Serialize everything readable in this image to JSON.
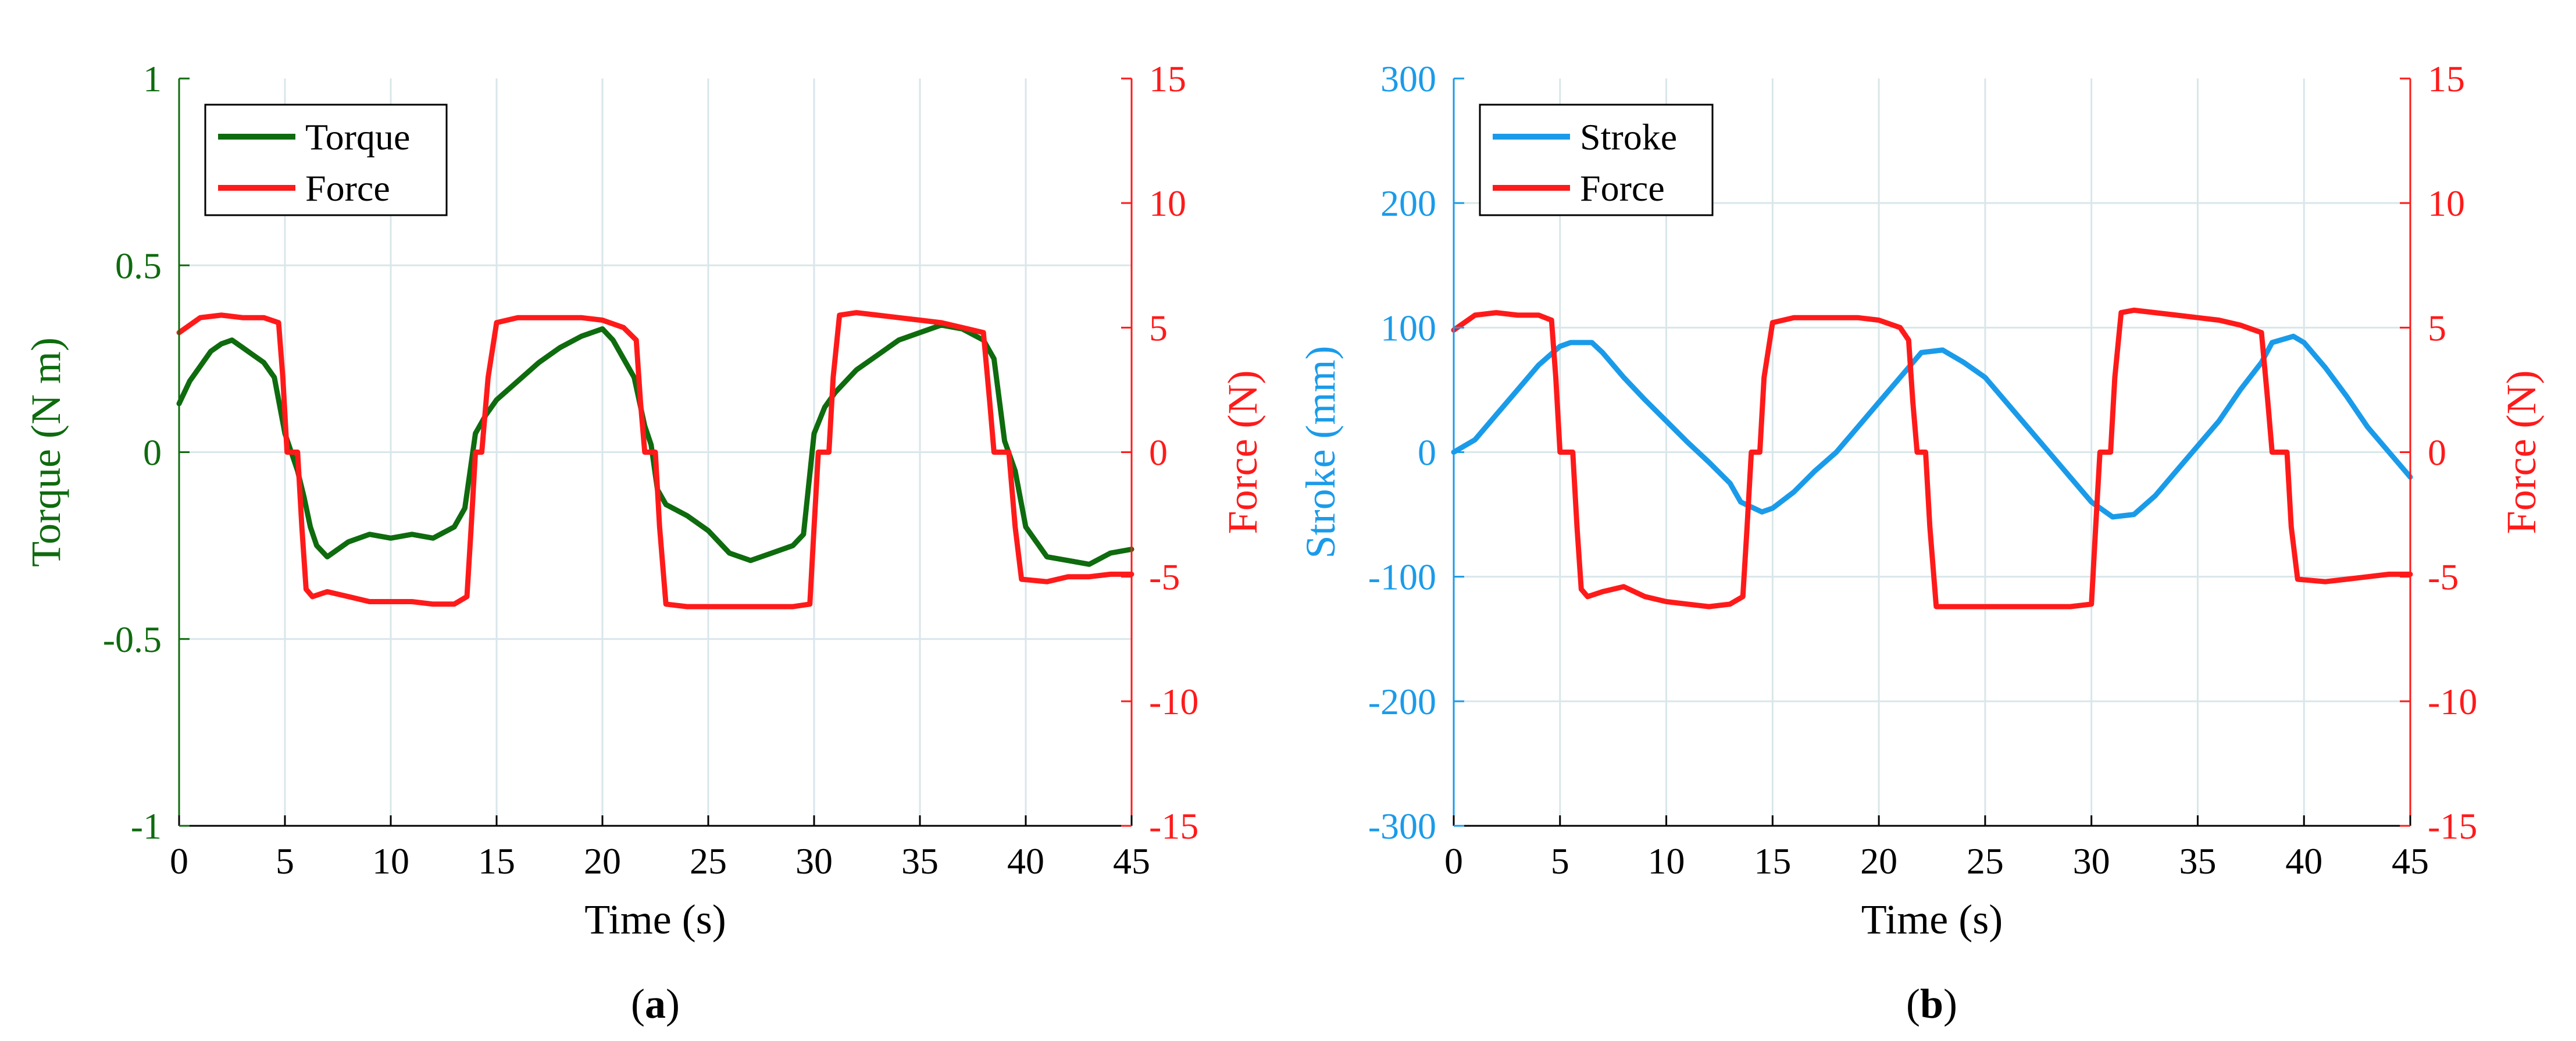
{
  "figure": {
    "captions": [
      "(a)",
      "(b)"
    ],
    "caption_letters": [
      "a",
      "b"
    ]
  },
  "colors": {
    "torque": "#0e6b0e",
    "force": "#ff1a1a",
    "stroke": "#1a9bea",
    "grid": "#d9e6ea",
    "axis": "#000000"
  },
  "chart_data": [
    {
      "type": "line",
      "panel": "a",
      "xlabel": "Time (s)",
      "ylabel_left": "Torque (N m)",
      "ylabel_right": "Force (N)",
      "xlim": [
        0,
        45
      ],
      "ylim_left": [
        -1,
        1
      ],
      "ylim_right": [
        -15,
        15
      ],
      "x_ticks": [
        0,
        5,
        10,
        15,
        20,
        25,
        30,
        35,
        40,
        45
      ],
      "y_left_ticks": [
        -1,
        -0.5,
        0,
        0.5,
        1
      ],
      "y_left_tick_labels": [
        "-1",
        "-0.5",
        "0",
        "0.5",
        "1"
      ],
      "y_right_ticks": [
        -15,
        -10,
        -5,
        0,
        5,
        10,
        15
      ],
      "grid": true,
      "legend_position": "top-left",
      "series": [
        {
          "name": "Torque",
          "axis": "left",
          "color": "#0e6b0e",
          "x": [
            0,
            0.5,
            1,
            1.5,
            2,
            2.5,
            3,
            3.5,
            4,
            4.5,
            5,
            5.3,
            5.6,
            5.9,
            6.2,
            6.5,
            7,
            8,
            9,
            10,
            11,
            12,
            13,
            13.5,
            14,
            14.5,
            15,
            16,
            17,
            18,
            19,
            20,
            20.5,
            21,
            21.5,
            22,
            22.3,
            22.6,
            23,
            24,
            25,
            26,
            27,
            28,
            29,
            29.5,
            30,
            30.5,
            31,
            32,
            33,
            34,
            35,
            36,
            37,
            38,
            38.5,
            39,
            39.5,
            40,
            41,
            42,
            43,
            44,
            45
          ],
          "values": [
            0.13,
            0.19,
            0.23,
            0.27,
            0.29,
            0.3,
            0.28,
            0.26,
            0.24,
            0.2,
            0.05,
            0.0,
            -0.05,
            -0.12,
            -0.2,
            -0.25,
            -0.28,
            -0.24,
            -0.22,
            -0.23,
            -0.22,
            -0.23,
            -0.2,
            -0.15,
            0.05,
            0.1,
            0.14,
            0.19,
            0.24,
            0.28,
            0.31,
            0.33,
            0.3,
            0.25,
            0.2,
            0.07,
            0.02,
            -0.1,
            -0.14,
            -0.17,
            -0.21,
            -0.27,
            -0.29,
            -0.27,
            -0.25,
            -0.22,
            0.05,
            0.12,
            0.16,
            0.22,
            0.26,
            0.3,
            0.32,
            0.34,
            0.33,
            0.3,
            0.25,
            0.03,
            -0.05,
            -0.2,
            -0.28,
            -0.29,
            -0.3,
            -0.27,
            -0.26
          ]
        },
        {
          "name": "Force",
          "axis": "right",
          "color": "#ff1a1a",
          "x": [
            0,
            1,
            2,
            3,
            4,
            4.7,
            4.9,
            5.1,
            5.6,
            5.8,
            6.0,
            6.3,
            7,
            8,
            9,
            10,
            11,
            12,
            13,
            13.6,
            13.8,
            14.0,
            14.3,
            14.6,
            15,
            16,
            17,
            18,
            19,
            20,
            21,
            21.6,
            21.8,
            22.0,
            22.5,
            22.7,
            23,
            24,
            25,
            26,
            27,
            28,
            29,
            29.8,
            30.0,
            30.2,
            30.7,
            30.9,
            31.2,
            32,
            33,
            34,
            35,
            36,
            37,
            38,
            38.3,
            38.5,
            39.2,
            39.5,
            39.8,
            41,
            42,
            43,
            44,
            45
          ],
          "values": [
            4.8,
            5.4,
            5.5,
            5.4,
            5.4,
            5.2,
            3.0,
            0,
            0,
            -3.0,
            -5.5,
            -5.8,
            -5.6,
            -5.8,
            -6.0,
            -6.0,
            -6.0,
            -6.1,
            -6.1,
            -5.8,
            -3.0,
            0,
            0,
            3.0,
            5.2,
            5.4,
            5.4,
            5.4,
            5.4,
            5.3,
            5.0,
            4.5,
            2.0,
            0,
            0,
            -3.0,
            -6.1,
            -6.2,
            -6.2,
            -6.2,
            -6.2,
            -6.2,
            -6.2,
            -6.1,
            -3.0,
            0,
            0,
            3.0,
            5.5,
            5.6,
            5.5,
            5.4,
            5.3,
            5.2,
            5.0,
            4.8,
            2.0,
            0,
            0,
            -3.0,
            -5.1,
            -5.2,
            -5.0,
            -5.0,
            -4.9,
            -4.9
          ]
        }
      ]
    },
    {
      "type": "line",
      "panel": "b",
      "xlabel": "Time (s)",
      "ylabel_left": "Stroke (mm)",
      "ylabel_right": "Force (N)",
      "xlim": [
        0,
        45
      ],
      "ylim_left": [
        -300,
        300
      ],
      "ylim_right": [
        -15,
        15
      ],
      "x_ticks": [
        0,
        5,
        10,
        15,
        20,
        25,
        30,
        35,
        40,
        45
      ],
      "y_left_ticks": [
        -300,
        -200,
        -100,
        0,
        100,
        200,
        300
      ],
      "y_left_tick_labels": [
        "-300",
        "-200",
        "-100",
        "0",
        "100",
        "200",
        "300"
      ],
      "y_right_ticks": [
        -15,
        -10,
        -5,
        0,
        5,
        10,
        15
      ],
      "grid": true,
      "legend_position": "top-left",
      "series": [
        {
          "name": "Stroke",
          "axis": "left",
          "color": "#1a9bea",
          "x": [
            0,
            1,
            2,
            3,
            4,
            5,
            5.5,
            6.5,
            7,
            8,
            9,
            10,
            11,
            12,
            13,
            13.5,
            14.5,
            15,
            16,
            17,
            18,
            19,
            20,
            21,
            22,
            23,
            24,
            25,
            26,
            27,
            28,
            29,
            30,
            31,
            32,
            33,
            34,
            35,
            36,
            37,
            38,
            38.5,
            39.5,
            40,
            41,
            42,
            43,
            44,
            45
          ],
          "values": [
            0,
            10,
            30,
            50,
            70,
            85,
            88,
            88,
            80,
            60,
            42,
            25,
            8,
            -8,
            -25,
            -40,
            -48,
            -45,
            -32,
            -15,
            0,
            20,
            40,
            60,
            80,
            82,
            72,
            60,
            40,
            20,
            0,
            -20,
            -40,
            -52,
            -50,
            -35,
            -15,
            5,
            25,
            50,
            72,
            88,
            93,
            88,
            68,
            45,
            20,
            0,
            -20
          ]
        },
        {
          "name": "Force",
          "axis": "right",
          "color": "#ff1a1a",
          "x": [
            0,
            1,
            2,
            3,
            4,
            4.6,
            4.8,
            5.0,
            5.6,
            5.8,
            6.0,
            6.3,
            7,
            8,
            9,
            10,
            11,
            12,
            13,
            13.6,
            13.8,
            14.0,
            14.4,
            14.6,
            15,
            16,
            17,
            18,
            19,
            20,
            21,
            21.4,
            21.6,
            21.8,
            22.2,
            22.4,
            22.7,
            23,
            24,
            25,
            26,
            27,
            28,
            29,
            30,
            30.2,
            30.4,
            30.9,
            31.1,
            31.4,
            32,
            33,
            34,
            35,
            36,
            37,
            38,
            38.3,
            38.5,
            39.2,
            39.4,
            39.7,
            41,
            42,
            43,
            44,
            45
          ],
          "values": [
            4.9,
            5.5,
            5.6,
            5.5,
            5.5,
            5.3,
            3.0,
            0,
            0,
            -3.0,
            -5.5,
            -5.8,
            -5.6,
            -5.4,
            -5.8,
            -6.0,
            -6.1,
            -6.2,
            -6.1,
            -5.8,
            -3.0,
            0,
            0,
            3.0,
            5.2,
            5.4,
            5.4,
            5.4,
            5.4,
            5.3,
            5.0,
            4.5,
            2.0,
            0,
            0,
            -3.0,
            -6.2,
            -6.2,
            -6.2,
            -6.2,
            -6.2,
            -6.2,
            -6.2,
            -6.2,
            -6.1,
            -3.0,
            0,
            0,
            3.0,
            5.6,
            5.7,
            5.6,
            5.5,
            5.4,
            5.3,
            5.1,
            4.8,
            2.0,
            0,
            0,
            -3.0,
            -5.1,
            -5.2,
            -5.1,
            -5.0,
            -4.9,
            -4.9
          ]
        }
      ]
    }
  ]
}
